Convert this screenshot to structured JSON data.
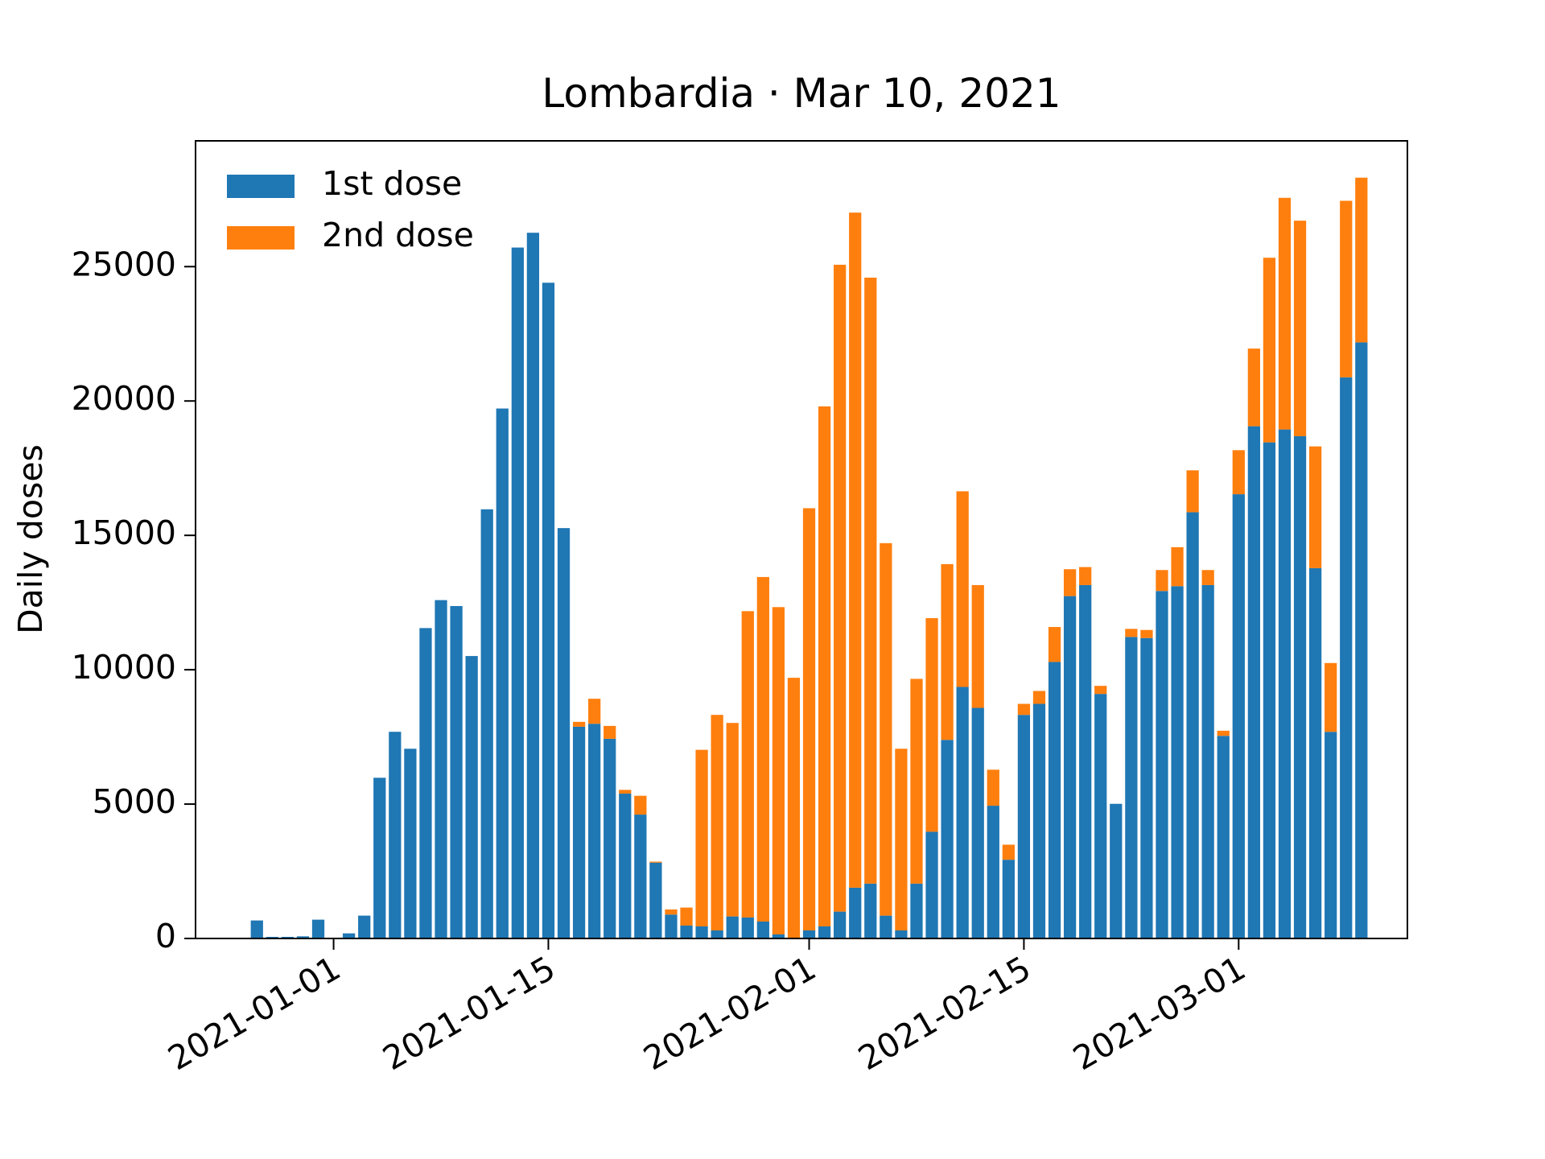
{
  "chart_data": {
    "type": "bar",
    "stacked": true,
    "title": "Lombardia · Mar 10, 2021",
    "ylabel": "Daily doses",
    "x": [
      "2020-12-27",
      "2020-12-28",
      "2020-12-29",
      "2020-12-30",
      "2020-12-31",
      "2021-01-01",
      "2021-01-02",
      "2021-01-03",
      "2021-01-04",
      "2021-01-05",
      "2021-01-06",
      "2021-01-07",
      "2021-01-08",
      "2021-01-09",
      "2021-01-10",
      "2021-01-11",
      "2021-01-12",
      "2021-01-13",
      "2021-01-14",
      "2021-01-15",
      "2021-01-16",
      "2021-01-17",
      "2021-01-18",
      "2021-01-19",
      "2021-01-20",
      "2021-01-21",
      "2021-01-22",
      "2021-01-23",
      "2021-01-24",
      "2021-01-25",
      "2021-01-26",
      "2021-01-27",
      "2021-01-28",
      "2021-01-29",
      "2021-01-30",
      "2021-01-31",
      "2021-02-01",
      "2021-02-02",
      "2021-02-03",
      "2021-02-04",
      "2021-02-05",
      "2021-02-06",
      "2021-02-07",
      "2021-02-08",
      "2021-02-09",
      "2021-02-10",
      "2021-02-11",
      "2021-02-12",
      "2021-02-13",
      "2021-02-14",
      "2021-02-15",
      "2021-02-16",
      "2021-02-17",
      "2021-02-18",
      "2021-02-19",
      "2021-02-20",
      "2021-02-21",
      "2021-02-22",
      "2021-02-23",
      "2021-02-24",
      "2021-02-25",
      "2021-02-26",
      "2021-02-27",
      "2021-02-28",
      "2021-03-01",
      "2021-03-02",
      "2021-03-03",
      "2021-03-04",
      "2021-03-05",
      "2021-03-06",
      "2021-03-07",
      "2021-03-08",
      "2021-03-09"
    ],
    "series": [
      {
        "name": "1st dose",
        "color": "#1f77b4",
        "values": [
          670,
          60,
          60,
          80,
          700,
          0,
          190,
          850,
          5980,
          7690,
          7060,
          11550,
          12590,
          12370,
          10510,
          15970,
          19720,
          25710,
          26260,
          24400,
          15270,
          7880,
          7990,
          7430,
          5390,
          4610,
          2820,
          890,
          480,
          450,
          300,
          820,
          780,
          630,
          150,
          0,
          300,
          450,
          1000,
          1890,
          2040,
          850,
          300,
          2040,
          3970,
          7390,
          9360,
          8580,
          4940,
          2930,
          8320,
          8730,
          10290,
          12740,
          13150,
          9100,
          5010,
          11220,
          11180,
          12930,
          13110,
          15860,
          13150,
          7540,
          16530,
          19060,
          18460,
          18940,
          18690,
          13780,
          7690,
          20880,
          22180
        ]
      },
      {
        "name": "2nd dose",
        "color": "#ff7f0e",
        "values": [
          0,
          0,
          0,
          0,
          0,
          0,
          0,
          0,
          0,
          0,
          0,
          0,
          0,
          0,
          0,
          0,
          0,
          0,
          0,
          0,
          0,
          180,
          930,
          480,
          140,
          700,
          40,
          190,
          670,
          6570,
          8020,
          7200,
          11400,
          12820,
          12180,
          9700,
          15710,
          19350,
          24070,
          25120,
          22550,
          13860,
          6760,
          7620,
          7950,
          6540,
          7280,
          4570,
          1340,
          560,
          410,
          480,
          1300,
          1000,
          670,
          300,
          0,
          300,
          300,
          780,
          1450,
          1560,
          560,
          190,
          1640,
          2890,
          6870,
          8620,
          8020,
          4530,
          2560,
          6570,
          6130
        ]
      }
    ],
    "xlim": [
      "2020-12-23",
      "2021-03-12"
    ],
    "xticks": [
      "2021-01-01",
      "2021-01-15",
      "2021-02-01",
      "2021-02-15",
      "2021-03-01"
    ],
    "ylim": [
      0,
      29680
    ],
    "yticks": [
      0,
      5000,
      10000,
      15000,
      20000,
      25000
    ],
    "legend": "upper left"
  }
}
